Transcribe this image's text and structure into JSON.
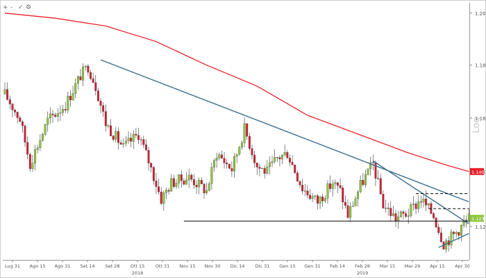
{
  "toolbar": {
    "buttons": [
      "+",
      "-",
      "✓",
      "⚙"
    ]
  },
  "chart_data": {
    "type": "candlestick",
    "title": "",
    "scale": "log",
    "ylim": [
      1.108,
      1.204
    ],
    "y_ticks": [
      "1.2000",
      "1.1800",
      "1.1600",
      "1.1400",
      "1.1200"
    ],
    "last_price_labels": [
      {
        "label": "1.1401",
        "series": "moving_average",
        "color": "#e8202a"
      },
      {
        "label": "1.1230",
        "series": "price",
        "color": "#8fc63d"
      }
    ],
    "y_axis_watermark": "Log",
    "x_labels": [
      "Lug 31",
      "Ago 15",
      "Ago 31",
      "Set 14",
      "Set 28",
      "Ott 15",
      "Ott 31",
      "Nov 15",
      "Nov 30",
      "Dic 14",
      "Dic 31",
      "Gen 15",
      "Gen 31",
      "Feb 14",
      "Feb 28",
      "Mar 15",
      "Mar 29",
      "Apr 15",
      "Apr 30"
    ],
    "x_years": [
      {
        "label": "2018",
        "near": "Ott 15"
      },
      {
        "label": "2019",
        "near": "Feb 28"
      }
    ],
    "anchors": [
      {
        "i": 0,
        "p": 1.169
      },
      {
        "i": 6,
        "p": 1.1595
      },
      {
        "i": 10,
        "p": 1.143
      },
      {
        "i": 17,
        "p": 1.159
      },
      {
        "i": 24,
        "p": 1.165
      },
      {
        "i": 30,
        "p": 1.176
      },
      {
        "i": 33,
        "p": 1.1795
      },
      {
        "i": 36,
        "p": 1.172
      },
      {
        "i": 40,
        "p": 1.158
      },
      {
        "i": 47,
        "p": 1.149
      },
      {
        "i": 53,
        "p": 1.154
      },
      {
        "i": 57,
        "p": 1.144
      },
      {
        "i": 62,
        "p": 1.13
      },
      {
        "i": 66,
        "p": 1.136
      },
      {
        "i": 73,
        "p": 1.138
      },
      {
        "i": 80,
        "p": 1.133
      },
      {
        "i": 84,
        "p": 1.147
      },
      {
        "i": 90,
        "p": 1.141
      },
      {
        "i": 95,
        "p": 1.156
      },
      {
        "i": 100,
        "p": 1.142
      },
      {
        "i": 104,
        "p": 1.14
      },
      {
        "i": 108,
        "p": 1.145
      },
      {
        "i": 112,
        "p": 1.147
      },
      {
        "i": 118,
        "p": 1.134
      },
      {
        "i": 124,
        "p": 1.129
      },
      {
        "i": 130,
        "p": 1.136
      },
      {
        "i": 133,
        "p": 1.133
      },
      {
        "i": 136,
        "p": 1.124
      },
      {
        "i": 141,
        "p": 1.135
      },
      {
        "i": 146,
        "p": 1.143
      },
      {
        "i": 150,
        "p": 1.128
      },
      {
        "i": 155,
        "p": 1.123
      },
      {
        "i": 160,
        "p": 1.125
      },
      {
        "i": 165,
        "p": 1.13
      },
      {
        "i": 170,
        "p": 1.124
      },
      {
        "i": 174,
        "p": 1.114
      },
      {
        "i": 178,
        "p": 1.117
      },
      {
        "i": 184,
        "p": 1.123
      }
    ],
    "moving_average": [
      {
        "i": 0,
        "p": 1.2
      },
      {
        "i": 20,
        "p": 1.198
      },
      {
        "i": 40,
        "p": 1.195
      },
      {
        "i": 60,
        "p": 1.189
      },
      {
        "i": 80,
        "p": 1.18
      },
      {
        "i": 100,
        "p": 1.172
      },
      {
        "i": 120,
        "p": 1.161
      },
      {
        "i": 140,
        "p": 1.154
      },
      {
        "i": 160,
        "p": 1.147
      },
      {
        "i": 175,
        "p": 1.1425
      },
      {
        "i": 184,
        "p": 1.1401
      }
    ],
    "trendlines": [
      {
        "from": {
          "i": 38,
          "p": 1.182
        },
        "to": {
          "i": 184,
          "p": 1.129
        },
        "style": "solid",
        "color": "#3a6d8e"
      },
      {
        "from": {
          "i": 146,
          "p": 1.144
        },
        "to": {
          "i": 184,
          "p": 1.121
        },
        "style": "solid",
        "color": "#3a6d8e"
      },
      {
        "from": {
          "i": 71,
          "p": 1.122
        },
        "to": {
          "i": 184,
          "p": 1.122
        },
        "style": "solid",
        "color": "#000000"
      },
      {
        "from": {
          "i": 172,
          "p": 1.1125
        },
        "to": {
          "i": 184,
          "p": 1.1175
        },
        "style": "solid",
        "color": "#3a6d8e"
      },
      {
        "from": {
          "i": 163,
          "p": 1.132
        },
        "to": {
          "i": 184,
          "p": 1.132
        },
        "style": "dashed",
        "color": "#000000"
      },
      {
        "from": {
          "i": 168,
          "p": 1.1265
        },
        "to": {
          "i": 184,
          "p": 1.1265
        },
        "style": "dashed",
        "color": "#000000"
      }
    ],
    "candles_total": 185,
    "candle_up_color": "#8fc63d",
    "candle_down_color": "#d2202f",
    "grid": false,
    "legend": "none"
  }
}
